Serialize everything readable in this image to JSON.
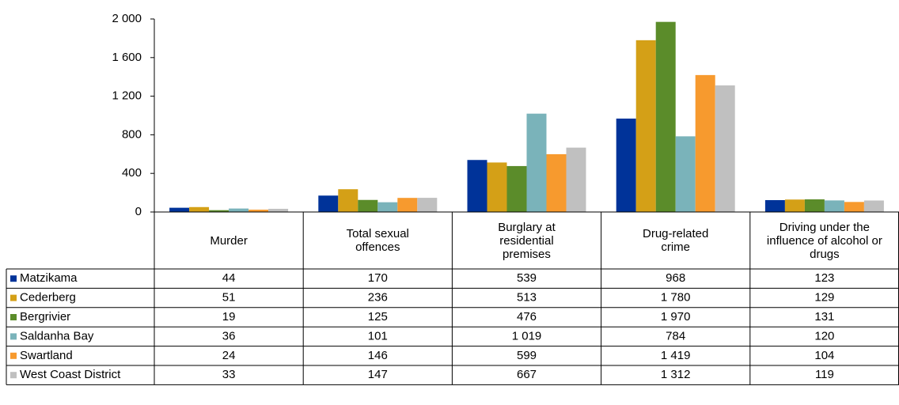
{
  "chart_data": {
    "type": "bar",
    "categories": [
      "Murder",
      "Total sexual offences",
      "Burglary at residential premises",
      "Drug-related crime",
      "Driving under the influence of alcohol or drugs"
    ],
    "series": [
      {
        "name": "Matzikama",
        "color": "#003399",
        "values": [
          44,
          170,
          539,
          968,
          123
        ]
      },
      {
        "name": "Cederberg",
        "color": "#d4a017",
        "values": [
          51,
          236,
          513,
          1780,
          129
        ],
        "value_labels": [
          "51",
          "236",
          "513",
          "1 780",
          "129"
        ]
      },
      {
        "name": "Bergrivier",
        "color": "#5b8c2a",
        "values": [
          19,
          125,
          476,
          1970,
          131
        ],
        "value_labels": [
          "19",
          "125",
          "476",
          "1 970",
          "131"
        ]
      },
      {
        "name": "Saldanha Bay",
        "color": "#7ab3ba",
        "values": [
          36,
          101,
          1019,
          784,
          120
        ],
        "value_labels": [
          "36",
          "101",
          "1 019",
          "784",
          "120"
        ]
      },
      {
        "name": "Swartland",
        "color": "#f79a2e",
        "values": [
          24,
          146,
          599,
          1419,
          104
        ],
        "value_labels": [
          "24",
          "146",
          "599",
          "1 419",
          "104"
        ]
      },
      {
        "name": "West Coast District",
        "color": "#c0c0c0",
        "values": [
          33,
          147,
          667,
          1312,
          119
        ],
        "value_labels": [
          "33",
          "147",
          "667",
          "1 312",
          "119"
        ]
      }
    ],
    "ylim": [
      0,
      2000
    ],
    "yticks": [
      0,
      400,
      800,
      {
        "value": 1200,
        "label": "1 200"
      },
      {
        "value": 1600,
        "label": "1 600"
      },
      {
        "value": 2000,
        "label": "2 000"
      }
    ],
    "grid": false,
    "legend": "table"
  }
}
